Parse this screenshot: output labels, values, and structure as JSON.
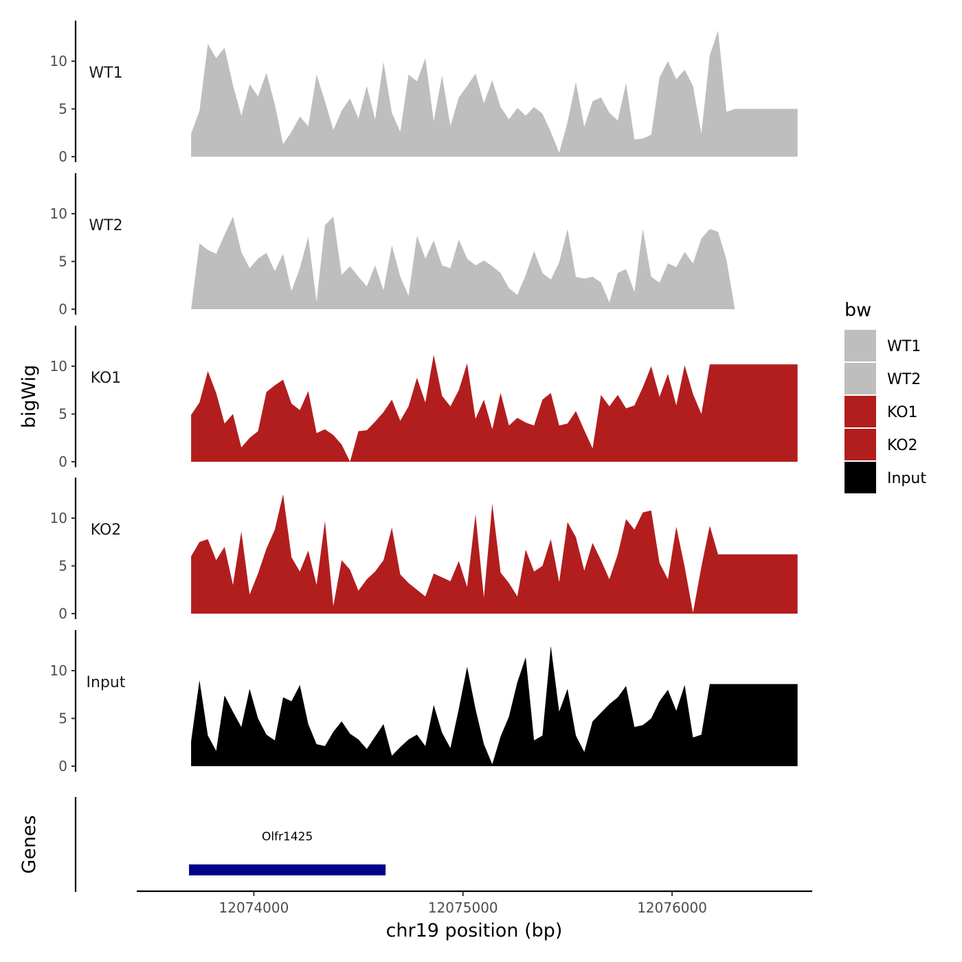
{
  "chart_data": {
    "type": "area",
    "ylabel": "bigWig",
    "genes_label": "Genes",
    "xlabel": "chr19 position (bp)",
    "xlim": [
      12073440,
      12076670
    ],
    "ylim": [
      0,
      14
    ],
    "yticks": [
      0,
      5,
      10
    ],
    "xticks": [
      12074000,
      12075000,
      12076000
    ],
    "xtick_labels": [
      "12074000",
      "12075000",
      "12076000"
    ],
    "legend": {
      "title": "bw",
      "position": "right",
      "entries": [
        {
          "label": "WT1",
          "color": "#bebebe"
        },
        {
          "label": "WT2",
          "color": "#bebebe"
        },
        {
          "label": "KO1",
          "color": "#b21e1e"
        },
        {
          "label": "KO2",
          "color": "#b21e1e"
        },
        {
          "label": "Input",
          "color": "#000000"
        }
      ]
    },
    "x": [
      12073700,
      12073740,
      12073780,
      12073820,
      12073860,
      12073900,
      12073940,
      12073980,
      12074020,
      12074060,
      12074100,
      12074140,
      12074180,
      12074220,
      12074260,
      12074300,
      12074340,
      12074380,
      12074420,
      12074460,
      12074500,
      12074540,
      12074580,
      12074620,
      12074660,
      12074700,
      12074740,
      12074780,
      12074820,
      12074860,
      12074900,
      12074940,
      12074980,
      12075020,
      12075060,
      12075100,
      12075140,
      12075180,
      12075220,
      12075260,
      12075300,
      12075340,
      12075380,
      12075420,
      12075460,
      12075500,
      12075540,
      12075580,
      12075620,
      12075660,
      12075700,
      12075740,
      12075780,
      12075820,
      12075860,
      12075900,
      12075940,
      12075980,
      12076020,
      12076060,
      12076100,
      12076140,
      12076180,
      12076220,
      12076260,
      12076300,
      12076340,
      12076380,
      12076420,
      12076460,
      12076500,
      12076540,
      12076580,
      12076600
    ],
    "series": [
      {
        "name": "WT1",
        "color": "#bebebe",
        "values": [
          2.4,
          4.8,
          11.8,
          10.3,
          11.4,
          7.5,
          4.3,
          7.6,
          6.3,
          8.8,
          5.5,
          1.3,
          2.6,
          4.2,
          3.2,
          8.6,
          5.8,
          2.8,
          4.8,
          6.1,
          4.0,
          7.4,
          3.9,
          9.9,
          4.6,
          2.6,
          8.6,
          7.9,
          10.3,
          3.7,
          8.5,
          3.2,
          6.2,
          7.4,
          8.7,
          5.6,
          8.0,
          5.2,
          3.9,
          5.1,
          4.3,
          5.2,
          4.5,
          2.6,
          0.4,
          3.6,
          7.8,
          3.1,
          5.8,
          6.2,
          4.6,
          3.8,
          7.7,
          1.8,
          1.9,
          2.3,
          8.3,
          10.0,
          8.1,
          9.1,
          7.4,
          2.4,
          10.6,
          13.2,
          4.7,
          5.0,
          5.0,
          5.0,
          5.0,
          5.0,
          5.0,
          5.0,
          5.0,
          5.0
        ]
      },
      {
        "name": "WT2",
        "color": "#bebebe",
        "values": [
          0.0,
          6.9,
          6.2,
          5.8,
          7.8,
          9.7,
          6.0,
          4.3,
          5.3,
          5.9,
          4.0,
          5.8,
          1.9,
          4.3,
          7.6,
          0.8,
          8.8,
          9.7,
          3.6,
          4.5,
          3.4,
          2.4,
          4.6,
          2.0,
          6.7,
          3.4,
          1.4,
          7.7,
          5.3,
          7.2,
          4.6,
          4.3,
          7.3,
          5.3,
          4.6,
          5.1,
          4.5,
          3.8,
          2.2,
          1.5,
          3.6,
          6.1,
          3.8,
          3.1,
          4.9,
          8.4,
          3.4,
          3.2,
          3.4,
          2.8,
          0.7,
          3.8,
          4.2,
          1.8,
          8.4,
          3.4,
          2.8,
          4.8,
          4.4,
          6.0,
          4.8,
          7.4,
          8.4,
          8.1,
          5.2,
          0.0,
          0.0,
          0.0,
          0.0,
          0.0,
          0.0,
          0.0,
          0.0,
          0.0
        ]
      },
      {
        "name": "KO1",
        "color": "#b21e1e",
        "values": [
          4.9,
          6.2,
          9.5,
          7.2,
          4.0,
          5.0,
          1.5,
          2.5,
          3.2,
          7.3,
          8.0,
          8.6,
          6.1,
          5.4,
          7.4,
          3.0,
          3.4,
          2.8,
          1.8,
          0.0,
          3.2,
          3.3,
          4.2,
          5.2,
          6.5,
          4.3,
          5.8,
          8.8,
          6.2,
          11.2,
          6.9,
          5.8,
          7.5,
          10.3,
          4.5,
          6.5,
          3.4,
          7.2,
          3.8,
          4.6,
          4.1,
          3.8,
          6.5,
          7.2,
          3.8,
          4.0,
          5.3,
          3.3,
          1.4,
          7.0,
          5.8,
          7.0,
          5.6,
          5.9,
          7.8,
          10.0,
          6.8,
          9.2,
          5.9,
          10.1,
          7.1,
          5.0,
          10.2,
          10.2,
          10.2,
          10.2,
          10.2,
          10.2,
          10.2,
          10.2,
          10.2,
          10.2,
          10.2,
          10.2
        ]
      },
      {
        "name": "KO2",
        "color": "#b21e1e",
        "values": [
          6.0,
          7.5,
          7.8,
          5.6,
          7.0,
          3.0,
          8.6,
          2.0,
          4.2,
          6.8,
          8.8,
          12.5,
          5.9,
          4.4,
          6.6,
          3.0,
          9.7,
          0.8,
          5.6,
          4.6,
          2.4,
          3.6,
          4.4,
          5.6,
          9.0,
          4.1,
          3.2,
          2.5,
          1.8,
          4.2,
          3.8,
          3.4,
          5.5,
          2.8,
          10.4,
          1.7,
          11.5,
          4.3,
          3.2,
          1.8,
          6.7,
          4.4,
          5.0,
          7.8,
          3.3,
          9.6,
          8.0,
          4.5,
          7.4,
          5.6,
          3.6,
          6.2,
          9.9,
          8.8,
          10.6,
          10.8,
          5.3,
          3.6,
          9.1,
          4.9,
          0.1,
          4.9,
          9.2,
          6.2,
          6.2,
          6.2,
          6.2,
          6.2,
          6.2,
          6.2,
          6.2,
          6.2,
          6.2,
          6.2
        ]
      },
      {
        "name": "Input",
        "color": "#000000",
        "values": [
          2.6,
          9.0,
          3.2,
          1.6,
          7.4,
          5.7,
          4.1,
          8.1,
          5.0,
          3.3,
          2.7,
          7.2,
          6.8,
          8.5,
          4.4,
          2.3,
          2.1,
          3.6,
          4.7,
          3.4,
          2.8,
          1.8,
          3.1,
          4.4,
          1.1,
          2.0,
          2.8,
          3.3,
          2.1,
          6.4,
          3.5,
          1.9,
          6.0,
          10.4,
          6.0,
          2.3,
          0.2,
          3.1,
          5.2,
          8.8,
          11.4,
          2.7,
          3.2,
          12.6,
          5.7,
          8.1,
          3.2,
          1.5,
          4.7,
          5.6,
          6.5,
          7.2,
          8.4,
          4.1,
          4.3,
          5.0,
          6.8,
          8.0,
          5.8,
          8.5,
          3.0,
          3.3,
          8.6,
          8.6,
          8.6,
          8.6,
          8.6,
          8.6,
          8.6,
          8.6,
          8.6,
          8.6,
          8.6,
          8.6
        ]
      }
    ],
    "genes": [
      {
        "name": "Olfr1425",
        "start": 12073690,
        "end": 12074630,
        "color": "#00008b"
      }
    ]
  }
}
